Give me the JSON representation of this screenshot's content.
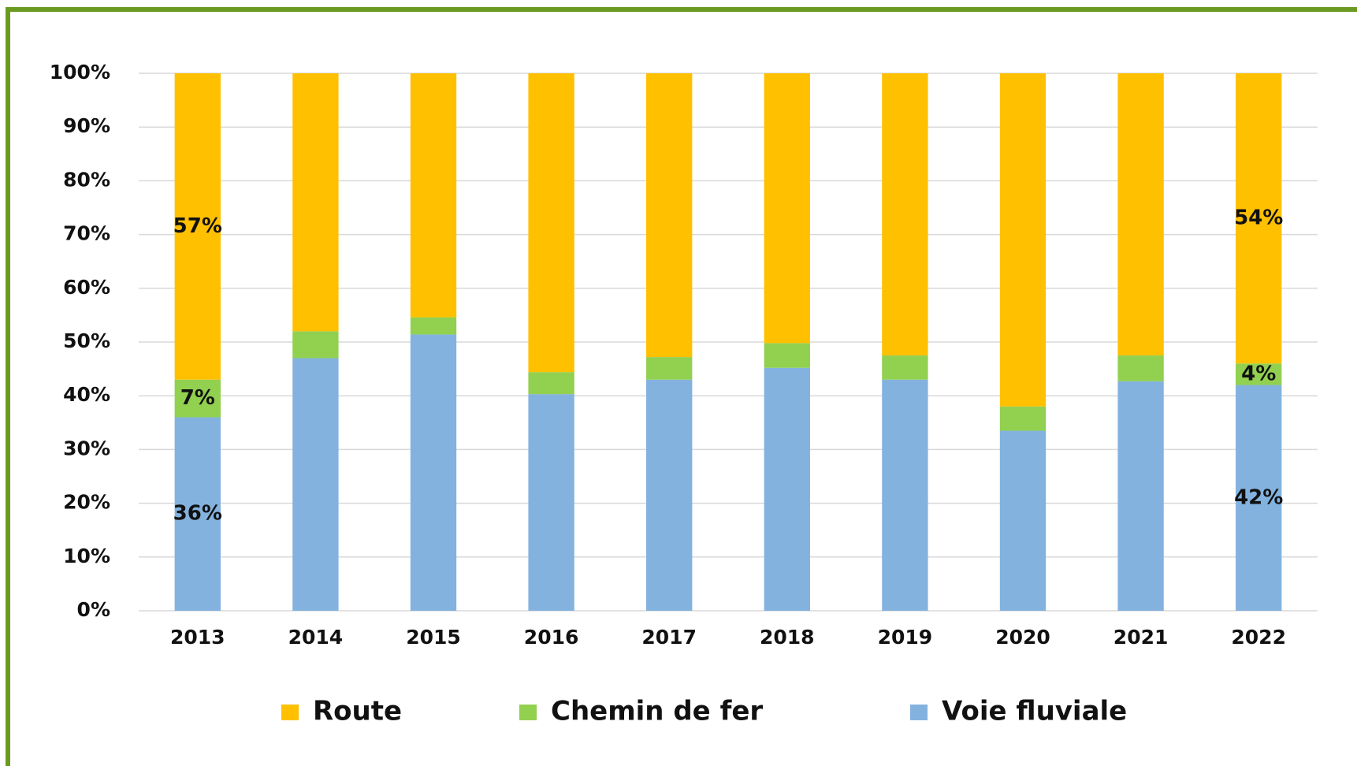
{
  "chart_data": {
    "type": "stacked_bar",
    "categories": [
      "2013",
      "2014",
      "2015",
      "2016",
      "2017",
      "2018",
      "2019",
      "2020",
      "2021",
      "2022"
    ],
    "series": [
      {
        "name": "Voie fluviale",
        "color": "#83b2df",
        "values": [
          36,
          47,
          51.4,
          40.3,
          43,
          45.2,
          43,
          33.5,
          42.7,
          42
        ],
        "value_labels": [
          "36%",
          null,
          null,
          null,
          null,
          null,
          null,
          null,
          null,
          "42%"
        ]
      },
      {
        "name": "Chemin de fer",
        "color": "#92d050",
        "values": [
          7,
          5,
          3.2,
          4.1,
          4.2,
          4.6,
          4.5,
          4.5,
          4.8,
          4
        ],
        "value_labels": [
          "7%",
          null,
          null,
          null,
          null,
          null,
          null,
          null,
          null,
          "4%"
        ]
      },
      {
        "name": "Route",
        "color": "#ffc000",
        "values": [
          57,
          48,
          45.4,
          55.6,
          52.8,
          50.2,
          52.5,
          62,
          52.5,
          54
        ],
        "value_labels": [
          "57%",
          null,
          null,
          null,
          null,
          null,
          null,
          null,
          null,
          "54%"
        ]
      }
    ],
    "ylim": [
      0,
      100
    ],
    "yticks": [
      {
        "value": 0,
        "label": "0%"
      },
      {
        "value": 10,
        "label": "10%"
      },
      {
        "value": 20,
        "label": "20%"
      },
      {
        "value": 30,
        "label": "30%"
      },
      {
        "value": 40,
        "label": "40%"
      },
      {
        "value": 50,
        "label": "50%"
      },
      {
        "value": 60,
        "label": "60%"
      },
      {
        "value": 70,
        "label": "70%"
      },
      {
        "value": 80,
        "label": "80%"
      },
      {
        "value": 90,
        "label": "90%"
      },
      {
        "value": 100,
        "label": "100%"
      }
    ],
    "grid": true,
    "legend": "bottom"
  }
}
